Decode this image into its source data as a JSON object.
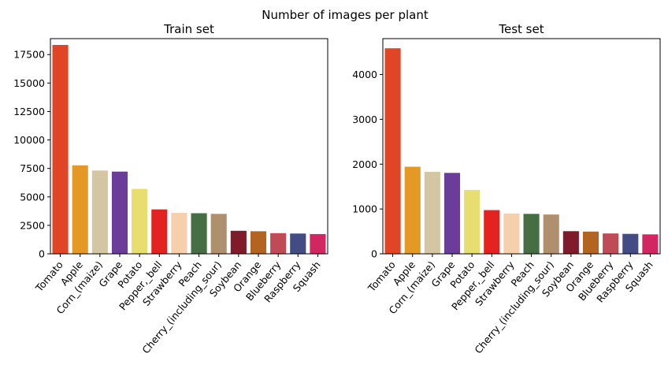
{
  "suptitle": "Number of images per plant",
  "colors": [
    "#e04526",
    "#e39923",
    "#d4c5a3",
    "#6b3c99",
    "#e8dd70",
    "#e3231f",
    "#f6cfac",
    "#456f43",
    "#b08f6e",
    "#7f1b2a",
    "#b36420",
    "#be4b56",
    "#434c83",
    "#d12661"
  ],
  "chart_data": [
    {
      "type": "bar",
      "title": "Train set",
      "categories": [
        "Tomato",
        "Apple",
        "Corn_(maize)",
        "Grape",
        "Potato",
        "Pepper,_bell",
        "Strawberry",
        "Peach",
        "Cherry_(including_sour)",
        "Soybean",
        "Orange",
        "Blueberry",
        "Raspberry",
        "Squash"
      ],
      "values": [
        18345,
        7771,
        7316,
        7222,
        5702,
        3901,
        3598,
        3566,
        3509,
        2022,
        1982,
        1816,
        1781,
        1736
      ],
      "ylim": [
        0,
        18900
      ],
      "yticks": [
        0,
        2500,
        5000,
        7500,
        10000,
        12500,
        15000,
        17500
      ],
      "xlabel": "",
      "ylabel": ""
    },
    {
      "type": "bar",
      "title": "Test set",
      "categories": [
        "Tomato",
        "Apple",
        "Corn_(maize)",
        "Grape",
        "Potato",
        "Pepper,_bell",
        "Strawberry",
        "Peach",
        "Cherry_(including_sour)",
        "Soybean",
        "Orange",
        "Blueberry",
        "Raspberry",
        "Squash"
      ],
      "values": [
        4585,
        1943,
        1829,
        1805,
        1426,
        975,
        900,
        891,
        877,
        505,
        496,
        454,
        445,
        434
      ],
      "ylim": [
        0,
        4800
      ],
      "yticks": [
        0,
        1000,
        2000,
        3000,
        4000
      ],
      "xlabel": "",
      "ylabel": ""
    }
  ]
}
